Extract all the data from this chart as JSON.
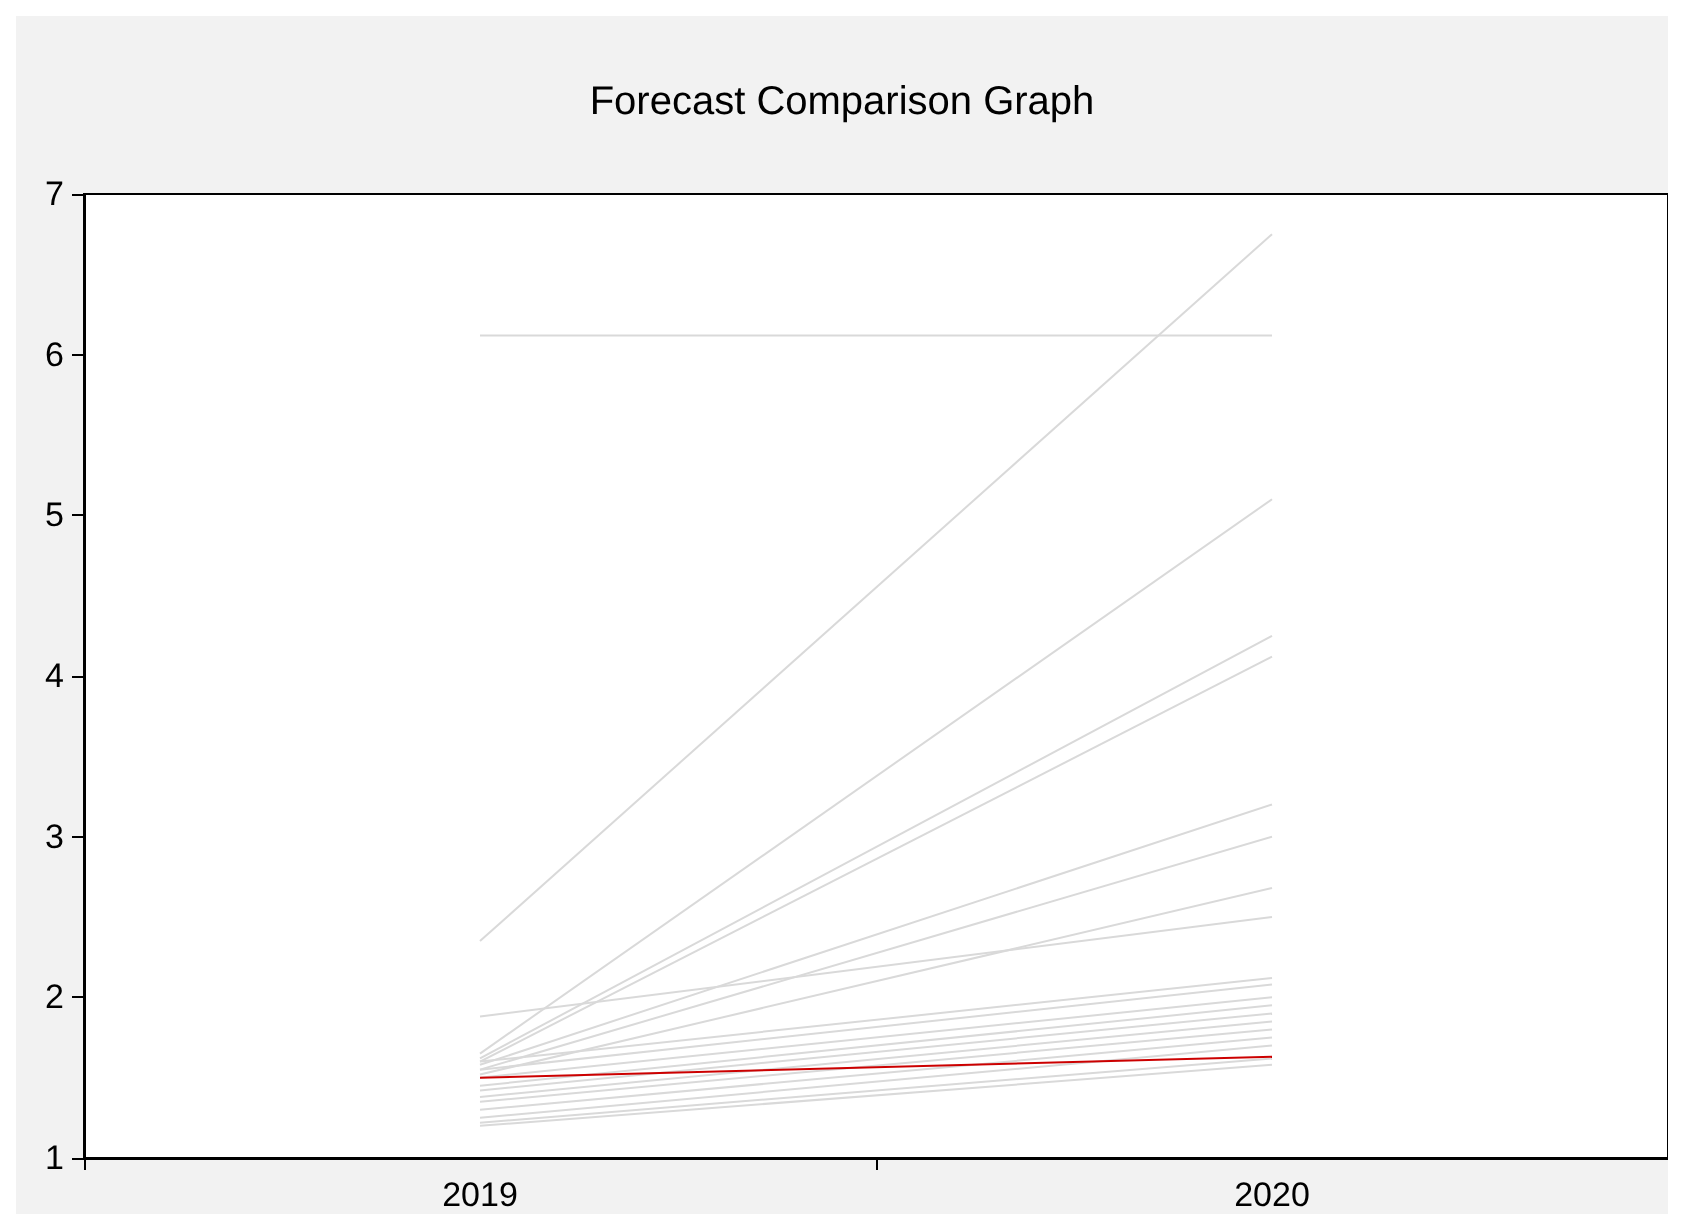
{
  "chart_data": {
    "type": "line",
    "title": "Forecast Comparison Graph",
    "categories": [
      "2019",
      "2020"
    ],
    "ylim": [
      1,
      7
    ],
    "yticks": [
      1,
      2,
      3,
      4,
      5,
      6,
      7
    ],
    "grid": false,
    "marker": "none",
    "line_style": "solid",
    "series": [
      {
        "color": "#d9d9d9",
        "values": [
          6.12,
          6.12
        ]
      },
      {
        "color": "#d9d9d9",
        "values": [
          2.35,
          6.75
        ]
      },
      {
        "color": "#d9d9d9",
        "values": [
          1.65,
          5.1
        ]
      },
      {
        "color": "#d9d9d9",
        "values": [
          1.62,
          4.25
        ]
      },
      {
        "color": "#d9d9d9",
        "values": [
          1.6,
          4.12
        ]
      },
      {
        "color": "#d9d9d9",
        "values": [
          1.58,
          3.2
        ]
      },
      {
        "color": "#d9d9d9",
        "values": [
          1.55,
          3.0
        ]
      },
      {
        "color": "#d9d9d9",
        "values": [
          1.52,
          2.68
        ]
      },
      {
        "color": "#d9d9d9",
        "values": [
          1.88,
          2.5
        ]
      },
      {
        "color": "#d9d9d9",
        "values": [
          1.6,
          2.12
        ]
      },
      {
        "color": "#d9d9d9",
        "values": [
          1.55,
          2.08
        ]
      },
      {
        "color": "#d9d9d9",
        "values": [
          1.5,
          2.0
        ]
      },
      {
        "color": "#d9d9d9",
        "values": [
          1.45,
          1.95
        ]
      },
      {
        "color": "#d9d9d9",
        "values": [
          1.42,
          1.9
        ]
      },
      {
        "color": "#d9d9d9",
        "values": [
          1.38,
          1.85
        ]
      },
      {
        "color": "#d9d9d9",
        "values": [
          1.35,
          1.8
        ]
      },
      {
        "color": "#d9d9d9",
        "values": [
          1.3,
          1.75
        ]
      },
      {
        "color": "#d9d9d9",
        "values": [
          1.25,
          1.7
        ]
      },
      {
        "color": "#d9d9d9",
        "values": [
          1.22,
          1.62
        ]
      },
      {
        "color": "#d9d9d9",
        "values": [
          1.2,
          1.58
        ]
      },
      {
        "color": "#cc0000",
        "values": [
          1.5,
          1.63
        ]
      }
    ]
  }
}
